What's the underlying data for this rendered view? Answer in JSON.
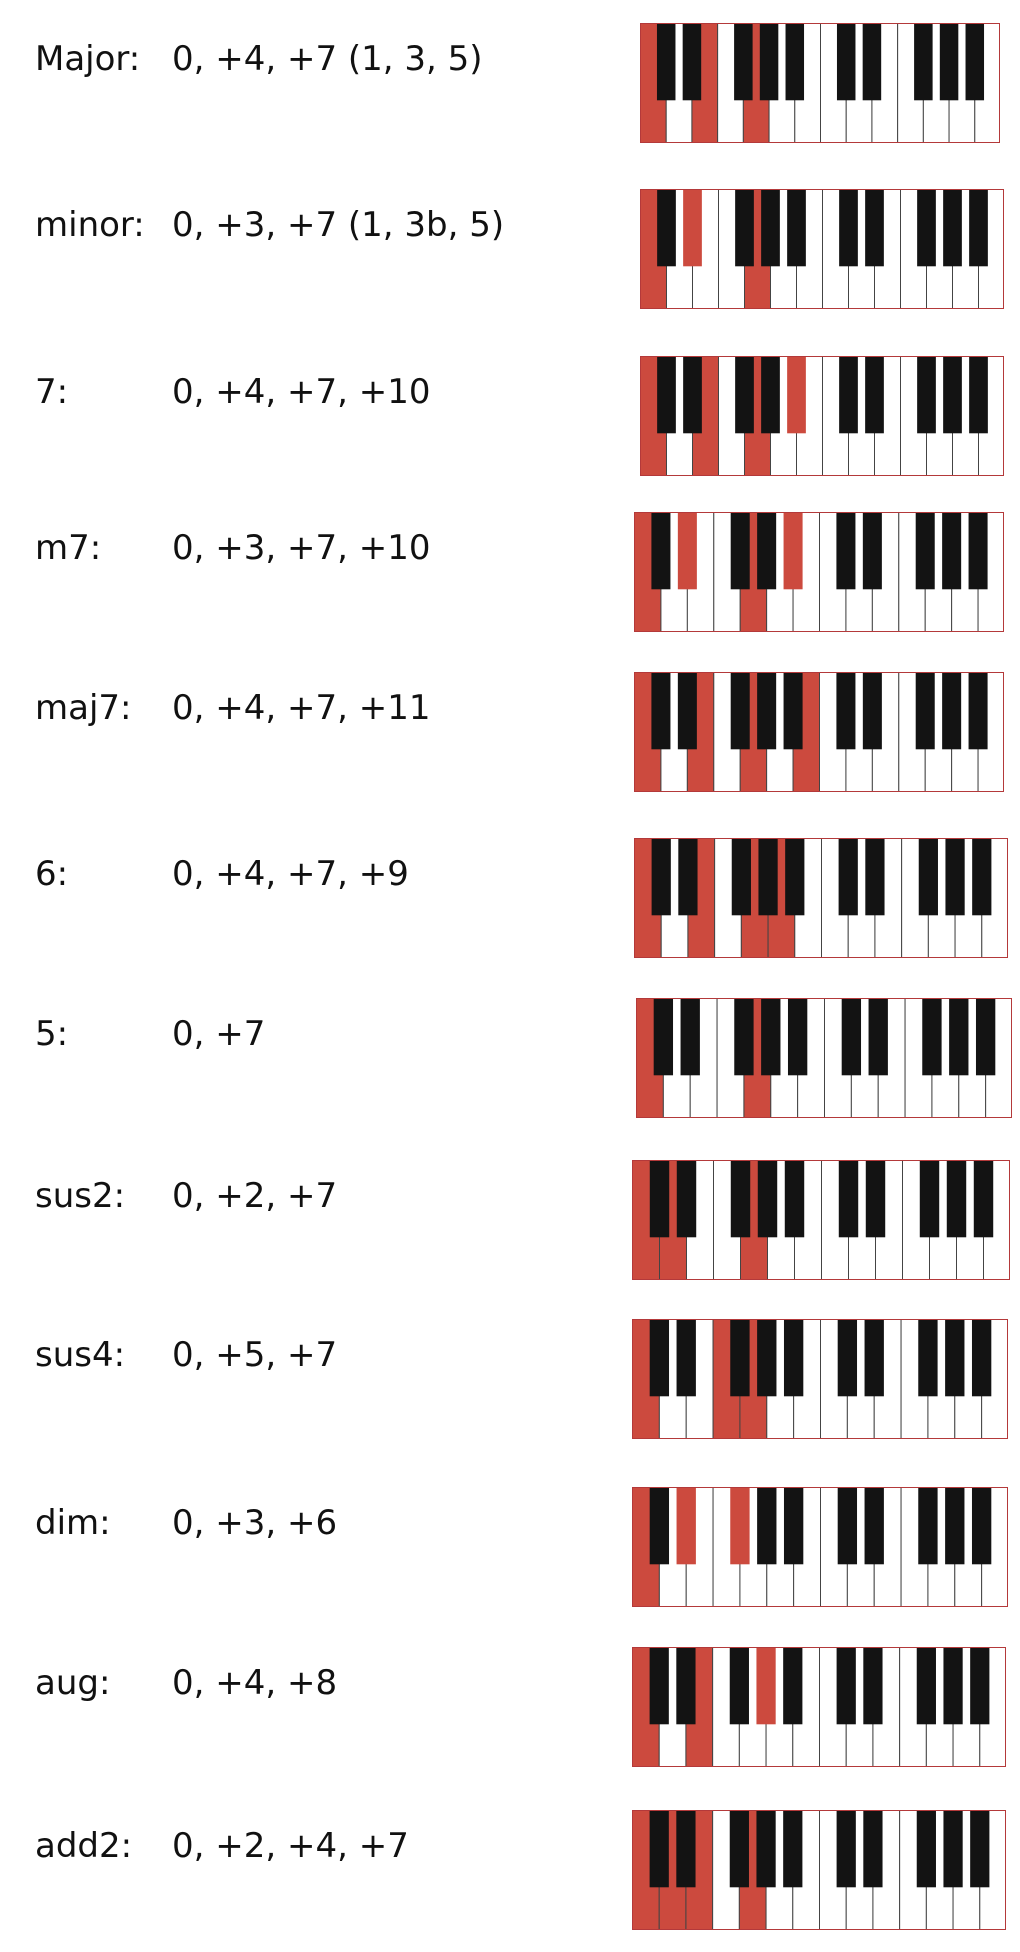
{
  "colors": {
    "highlight": "#cc4a3e",
    "white_key": "#ffffff",
    "black_key": "#131313",
    "key_border": "#444444",
    "keyboard_frame": "#b4393a"
  },
  "keyboard": {
    "white_key_count": 14,
    "black_key_count": 10
  },
  "chords": [
    {
      "name": "Major:",
      "intervals": "0, +4, +7 (1, 3, 5)",
      "semitones": [
        0,
        4,
        7
      ]
    },
    {
      "name": "minor:",
      "intervals": "0, +3, +7 (1, 3b, 5)",
      "semitones": [
        0,
        3,
        7
      ]
    },
    {
      "name": "7:",
      "intervals": "0, +4, +7, +10",
      "semitones": [
        0,
        4,
        7,
        10
      ]
    },
    {
      "name": "m7:",
      "intervals": "0, +3, +7, +10",
      "semitones": [
        0,
        3,
        7,
        10
      ]
    },
    {
      "name": "maj7:",
      "intervals": "0, +4, +7, +11",
      "semitones": [
        0,
        4,
        7,
        11
      ]
    },
    {
      "name": "6:",
      "intervals": "0, +4, +7, +9",
      "semitones": [
        0,
        4,
        7,
        9
      ]
    },
    {
      "name": "5:",
      "intervals": "0, +7",
      "semitones": [
        0,
        7
      ]
    },
    {
      "name": "sus2:",
      "intervals": "0, +2, +7",
      "semitones": [
        0,
        2,
        7
      ]
    },
    {
      "name": "sus4:",
      "intervals": "0, +5, +7",
      "semitones": [
        0,
        5,
        7
      ]
    },
    {
      "name": "dim:",
      "intervals": "0, +3, +6",
      "semitones": [
        0,
        3,
        6
      ]
    },
    {
      "name": "aug:",
      "intervals": "0, +4, +8",
      "semitones": [
        0,
        4,
        8
      ]
    },
    {
      "name": "add2:",
      "intervals": "0, +2, +4, +7",
      "semitones": [
        0,
        2,
        4,
        7
      ]
    }
  ]
}
